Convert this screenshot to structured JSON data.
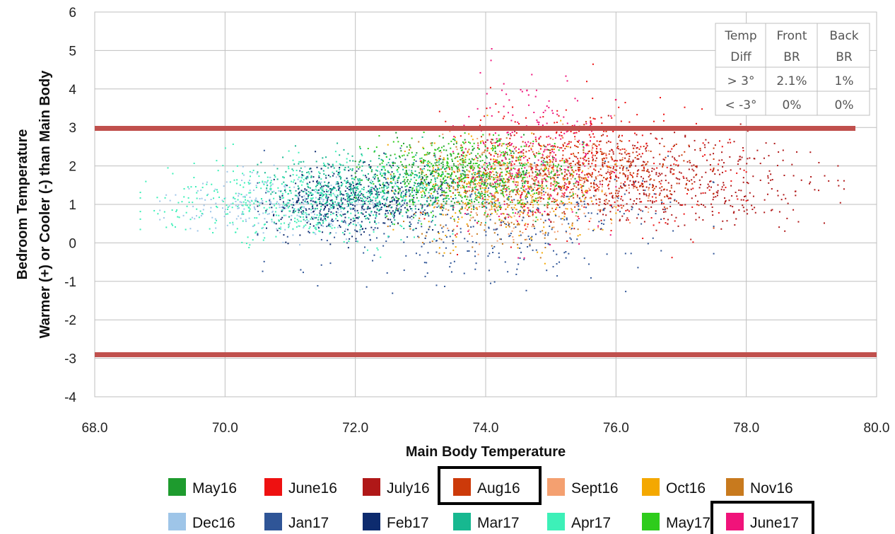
{
  "chart_data": {
    "type": "scatter",
    "title": "",
    "xlabel": "Main Body Temperature",
    "ylabel_line1": "Bedroom Temperature",
    "ylabel_line2": "Warmer (+) or Cooler (-) than Main Body",
    "xlim": [
      68.0,
      80.0
    ],
    "ylim": [
      -4,
      6
    ],
    "x_ticks": [
      "68.0",
      "70.0",
      "72.0",
      "74.0",
      "76.0",
      "78.0",
      "80.0"
    ],
    "y_ticks": [
      "6",
      "5",
      "4",
      "3",
      "2",
      "1",
      "0",
      "-1",
      "-2",
      "-3",
      "-4"
    ],
    "grid": true,
    "threshold_lines": [
      3,
      -3
    ],
    "threshold_color": "#c0504d",
    "legend_position": "bottom",
    "series": [
      {
        "name": "May16",
        "color": "#1e9b2e",
        "x_range": [
          72.0,
          75.5
        ],
        "y_mean": 1.7,
        "y_sd": 0.45,
        "count": 420
      },
      {
        "name": "June16",
        "color": "#ee1111",
        "x_range": [
          73.0,
          78.0
        ],
        "y_mean": 2.0,
        "y_sd": 0.9,
        "count": 380
      },
      {
        "name": "July16",
        "color": "#b01818",
        "x_range": [
          74.0,
          79.5
        ],
        "y_mean": 1.6,
        "y_sd": 0.6,
        "count": 520
      },
      {
        "name": "Aug16",
        "color": "#cc3a0a",
        "x_range": [
          73.5,
          77.5
        ],
        "y_mean": 1.9,
        "y_sd": 0.5,
        "count": 420
      },
      {
        "name": "Sept16",
        "color": "#f4a070",
        "x_range": [
          73.0,
          76.5
        ],
        "y_mean": 1.5,
        "y_sd": 0.7,
        "count": 300
      },
      {
        "name": "Oct16",
        "color": "#f4a800",
        "x_range": [
          72.5,
          76.0
        ],
        "y_mean": 1.4,
        "y_sd": 0.7,
        "count": 300
      },
      {
        "name": "Nov16",
        "color": "#c87a1e",
        "x_range": [
          72.5,
          75.5
        ],
        "y_mean": 1.3,
        "y_sd": 0.7,
        "count": 260
      },
      {
        "name": "Dec16",
        "color": "#9ec5e8",
        "x_range": [
          69.0,
          73.0
        ],
        "y_mean": 1.0,
        "y_sd": 0.4,
        "count": 320
      },
      {
        "name": "Jan17",
        "color": "#2f5597",
        "x_range": [
          70.5,
          77.5
        ],
        "y_mean": 0.6,
        "y_sd": 0.8,
        "count": 420
      },
      {
        "name": "Feb17",
        "color": "#0d2b6e",
        "x_range": [
          70.5,
          73.5
        ],
        "y_mean": 1.1,
        "y_sd": 0.45,
        "count": 480
      },
      {
        "name": "Mar17",
        "color": "#17b890",
        "x_range": [
          70.5,
          74.0
        ],
        "y_mean": 1.4,
        "y_sd": 0.45,
        "count": 500
      },
      {
        "name": "Apr17",
        "color": "#3df0b8",
        "x_range": [
          68.7,
          73.5
        ],
        "y_mean": 1.1,
        "y_sd": 0.55,
        "count": 420
      },
      {
        "name": "May17",
        "color": "#2ecc1c",
        "x_range": [
          72.0,
          75.5
        ],
        "y_mean": 1.8,
        "y_sd": 0.5,
        "count": 420
      },
      {
        "name": "June17",
        "color": "#f0137a",
        "x_range": [
          73.5,
          76.0
        ],
        "y_mean": 2.3,
        "y_sd": 1.0,
        "count": 260
      }
    ],
    "summary_table": {
      "header": [
        [
          "Temp",
          "Diff"
        ],
        [
          "Front",
          "BR"
        ],
        [
          "Back",
          "BR"
        ]
      ],
      "rows": [
        [
          "> 3°",
          "2.1%",
          "1%"
        ],
        [
          "< -3°",
          "0%",
          "0%"
        ]
      ]
    },
    "highlighted_legend_entries": [
      "Aug16",
      "June17"
    ]
  }
}
